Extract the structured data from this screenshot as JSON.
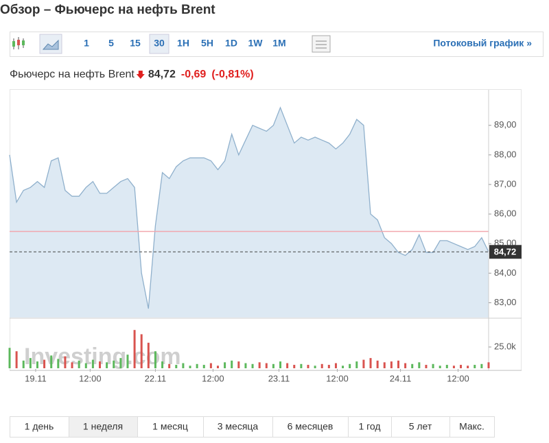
{
  "header": {
    "title": "Обзор – Фьючерс на нефть Brent"
  },
  "toolbar": {
    "intervals": [
      "1",
      "5",
      "15",
      "30",
      "1H",
      "5H",
      "1D",
      "1W",
      "1M"
    ],
    "active_interval_index": 3,
    "streaming_link": "Потоковый график »"
  },
  "quote": {
    "name": "Фьючерс на нефть Brent",
    "price": "84,72",
    "change": "-0,69",
    "change_percent": "(-0,81%)"
  },
  "ranges": [
    "1 день",
    "1 неделя",
    "1 месяц",
    "3 месяца",
    "6 месяцев",
    "1 год",
    "5 лет",
    "Макс."
  ],
  "active_range_index": 1,
  "watermark": "Investing.com",
  "chart_data": [
    {
      "type": "area",
      "color": "#8fb0cc",
      "fill": "#dde9f3",
      "values": [
        88.0,
        86.4,
        86.8,
        86.9,
        87.1,
        86.9,
        87.8,
        87.9,
        86.8,
        86.6,
        86.6,
        86.9,
        87.1,
        86.7,
        86.7,
        86.9,
        87.1,
        87.2,
        86.9,
        84.0,
        82.8,
        85.6,
        87.4,
        87.2,
        87.6,
        87.8,
        87.9,
        87.9,
        87.9,
        87.8,
        87.5,
        87.8,
        88.7,
        88.0,
        88.5,
        89.0,
        88.9,
        88.8,
        89.0,
        89.6,
        89.0,
        88.4,
        88.6,
        88.5,
        88.6,
        88.5,
        88.4,
        88.2,
        88.4,
        88.7,
        89.2,
        89.0,
        86.0,
        85.8,
        85.2,
        85.0,
        84.7,
        84.6,
        84.8,
        85.3,
        84.7,
        84.7,
        85.1,
        85.1,
        85.0,
        84.9,
        84.8,
        84.9,
        85.2,
        84.72
      ],
      "xlim": [
        0,
        69
      ],
      "ylim": [
        82.5,
        90.2
      ],
      "xticks": [
        {
          "value": 3.75,
          "label": "19.11"
        },
        {
          "value": 11.6,
          "label": "12:00"
        },
        {
          "value": 21.0,
          "label": "22.11"
        },
        {
          "value": 29.3,
          "label": "12:00"
        },
        {
          "value": 38.8,
          "label": "23.11"
        },
        {
          "value": 47.2,
          "label": "12:00"
        },
        {
          "value": 56.3,
          "label": "24.11"
        },
        {
          "value": 64.6,
          "label": "12:00"
        }
      ],
      "yticks": [
        {
          "value": 83,
          "label": "83,00"
        },
        {
          "value": 84,
          "label": "84,00"
        },
        {
          "value": 85,
          "label": "85,00"
        },
        {
          "value": 86,
          "label": "86,00"
        },
        {
          "value": 87,
          "label": "87,00"
        },
        {
          "value": 88,
          "label": "88,00"
        },
        {
          "value": 89,
          "label": "89,00"
        }
      ],
      "reference_line": 85.41,
      "reference_color": "#f2a7ad",
      "price_tag": {
        "value": 84.72,
        "label": "84,72"
      }
    },
    {
      "type": "volume",
      "up_color": "#5cb85c",
      "down_color": "#d9534f",
      "values": [
        24000,
        20000,
        9000,
        12000,
        8000,
        10000,
        15000,
        11000,
        14000,
        7000,
        9000,
        6000,
        10000,
        8000,
        7000,
        9000,
        12000,
        16000,
        45000,
        40000,
        30000,
        20000,
        8000,
        5000,
        4000,
        6000,
        3000,
        5000,
        4000,
        6000,
        3000,
        7000,
        9000,
        8000,
        6000,
        5000,
        7000,
        6000,
        5000,
        8000,
        6000,
        4000,
        5000,
        4000,
        3000,
        5000,
        4000,
        6000,
        3000,
        5000,
        8000,
        10000,
        12000,
        9000,
        7000,
        8000,
        9000,
        6000,
        5000,
        7000,
        4000,
        5000,
        3000,
        4000,
        3000,
        4000,
        3000,
        4000,
        5000,
        7000
      ],
      "ylim": [
        0,
        50000
      ],
      "yticks": [
        {
          "value": 25000,
          "label": "25.0k"
        }
      ]
    }
  ]
}
